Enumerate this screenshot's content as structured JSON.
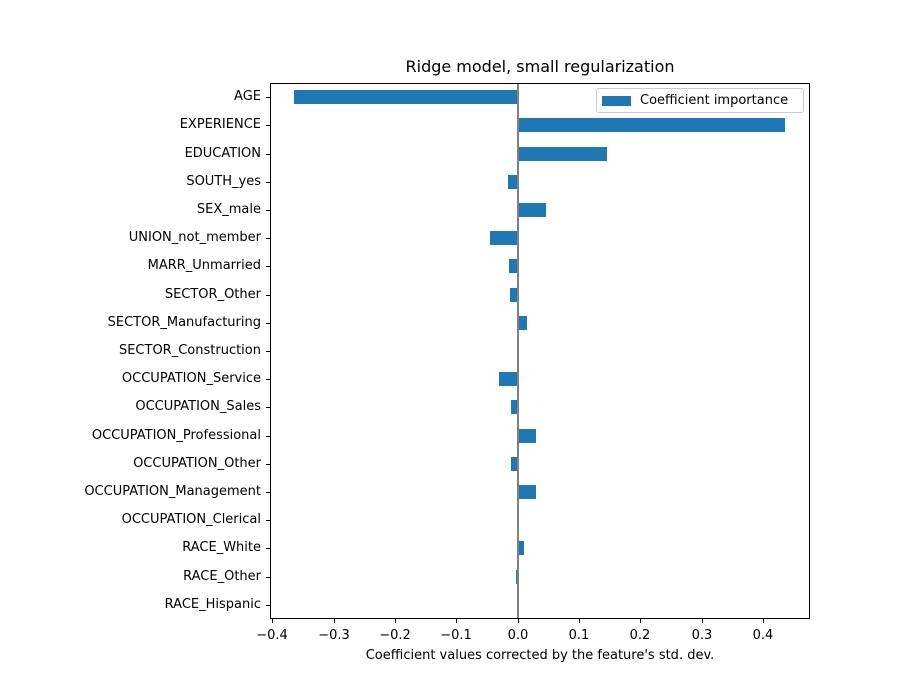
{
  "title": "Ridge model, small regularization",
  "xlabel": "Coefficient values corrected by the feature's std. dev.",
  "legend": {
    "label": "Coefficient importance",
    "swatch_color": "#1f77b4",
    "position": "upper right"
  },
  "colors": {
    "bar": "#1f77b4",
    "zero_line": "#808080",
    "spine": "#000000",
    "text": "#000000",
    "legend_border": "#cccccc",
    "background": "#ffffff"
  },
  "chart_data": {
    "type": "bar",
    "orientation": "horizontal",
    "title": "Ridge model, small regularization",
    "xlabel": "Coefficient values corrected by the feature's std. dev.",
    "ylabel": "",
    "legend_entries": [
      "Coefficient importance"
    ],
    "legend_position": "upper right",
    "grid": false,
    "zero_line_x": 0.0,
    "xlim": [
      -0.4037,
      0.4765
    ],
    "xticks": [
      -0.4,
      -0.3,
      -0.2,
      -0.1,
      0.0,
      0.1,
      0.2,
      0.3,
      0.4
    ],
    "xtick_labels": [
      "−0.4",
      "−0.3",
      "−0.2",
      "−0.1",
      "0.0",
      "0.1",
      "0.2",
      "0.3",
      "0.4"
    ],
    "bar_color": "#1f77b4",
    "categories": [
      "AGE",
      "EXPERIENCE",
      "EDUCATION",
      "SOUTH_yes",
      "SEX_male",
      "UNION_not_member",
      "MARR_Unmarried",
      "SECTOR_Other",
      "SECTOR_Manufacturing",
      "SECTOR_Construction",
      "OCCUPATION_Service",
      "OCCUPATION_Sales",
      "OCCUPATION_Professional",
      "OCCUPATION_Other",
      "OCCUPATION_Management",
      "OCCUPATION_Clerical",
      "RACE_White",
      "RACE_Other",
      "RACE_Hispanic"
    ],
    "values": [
      -0.364,
      0.436,
      0.145,
      -0.015,
      0.046,
      -0.045,
      -0.014,
      -0.013,
      0.015,
      0.0,
      -0.031,
      -0.011,
      0.03,
      -0.011,
      0.03,
      0.0,
      0.01,
      -0.003,
      0.0
    ]
  }
}
